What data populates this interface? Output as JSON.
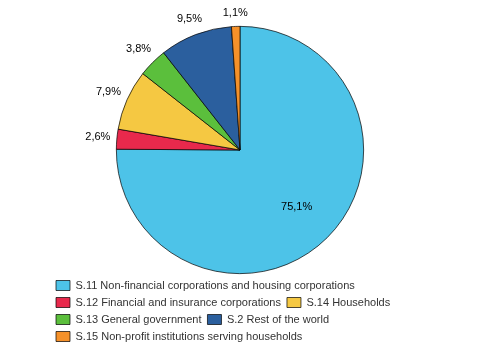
{
  "chart_data": {
    "type": "pie",
    "categories": [
      "S.11 Non-financial corporations and housing corporations",
      "S.12 Financial and insurance corporations",
      "S.14 Households",
      "S.13 General government",
      "S.2 Rest of the world",
      "S.15 Non-profit institutions serving households"
    ],
    "values": [
      75.1,
      2.6,
      7.9,
      3.8,
      9.5,
      1.1
    ],
    "value_labels": [
      "75,1%",
      "2,6%",
      "7,9%",
      "3,8%",
      "9,5%",
      "1,1%"
    ],
    "colors": [
      "#4DC3E8",
      "#E8294C",
      "#F5C842",
      "#5BBF3C",
      "#2B5F9E",
      "#F5912A"
    ],
    "data_labels": true,
    "legend": "bottom"
  }
}
